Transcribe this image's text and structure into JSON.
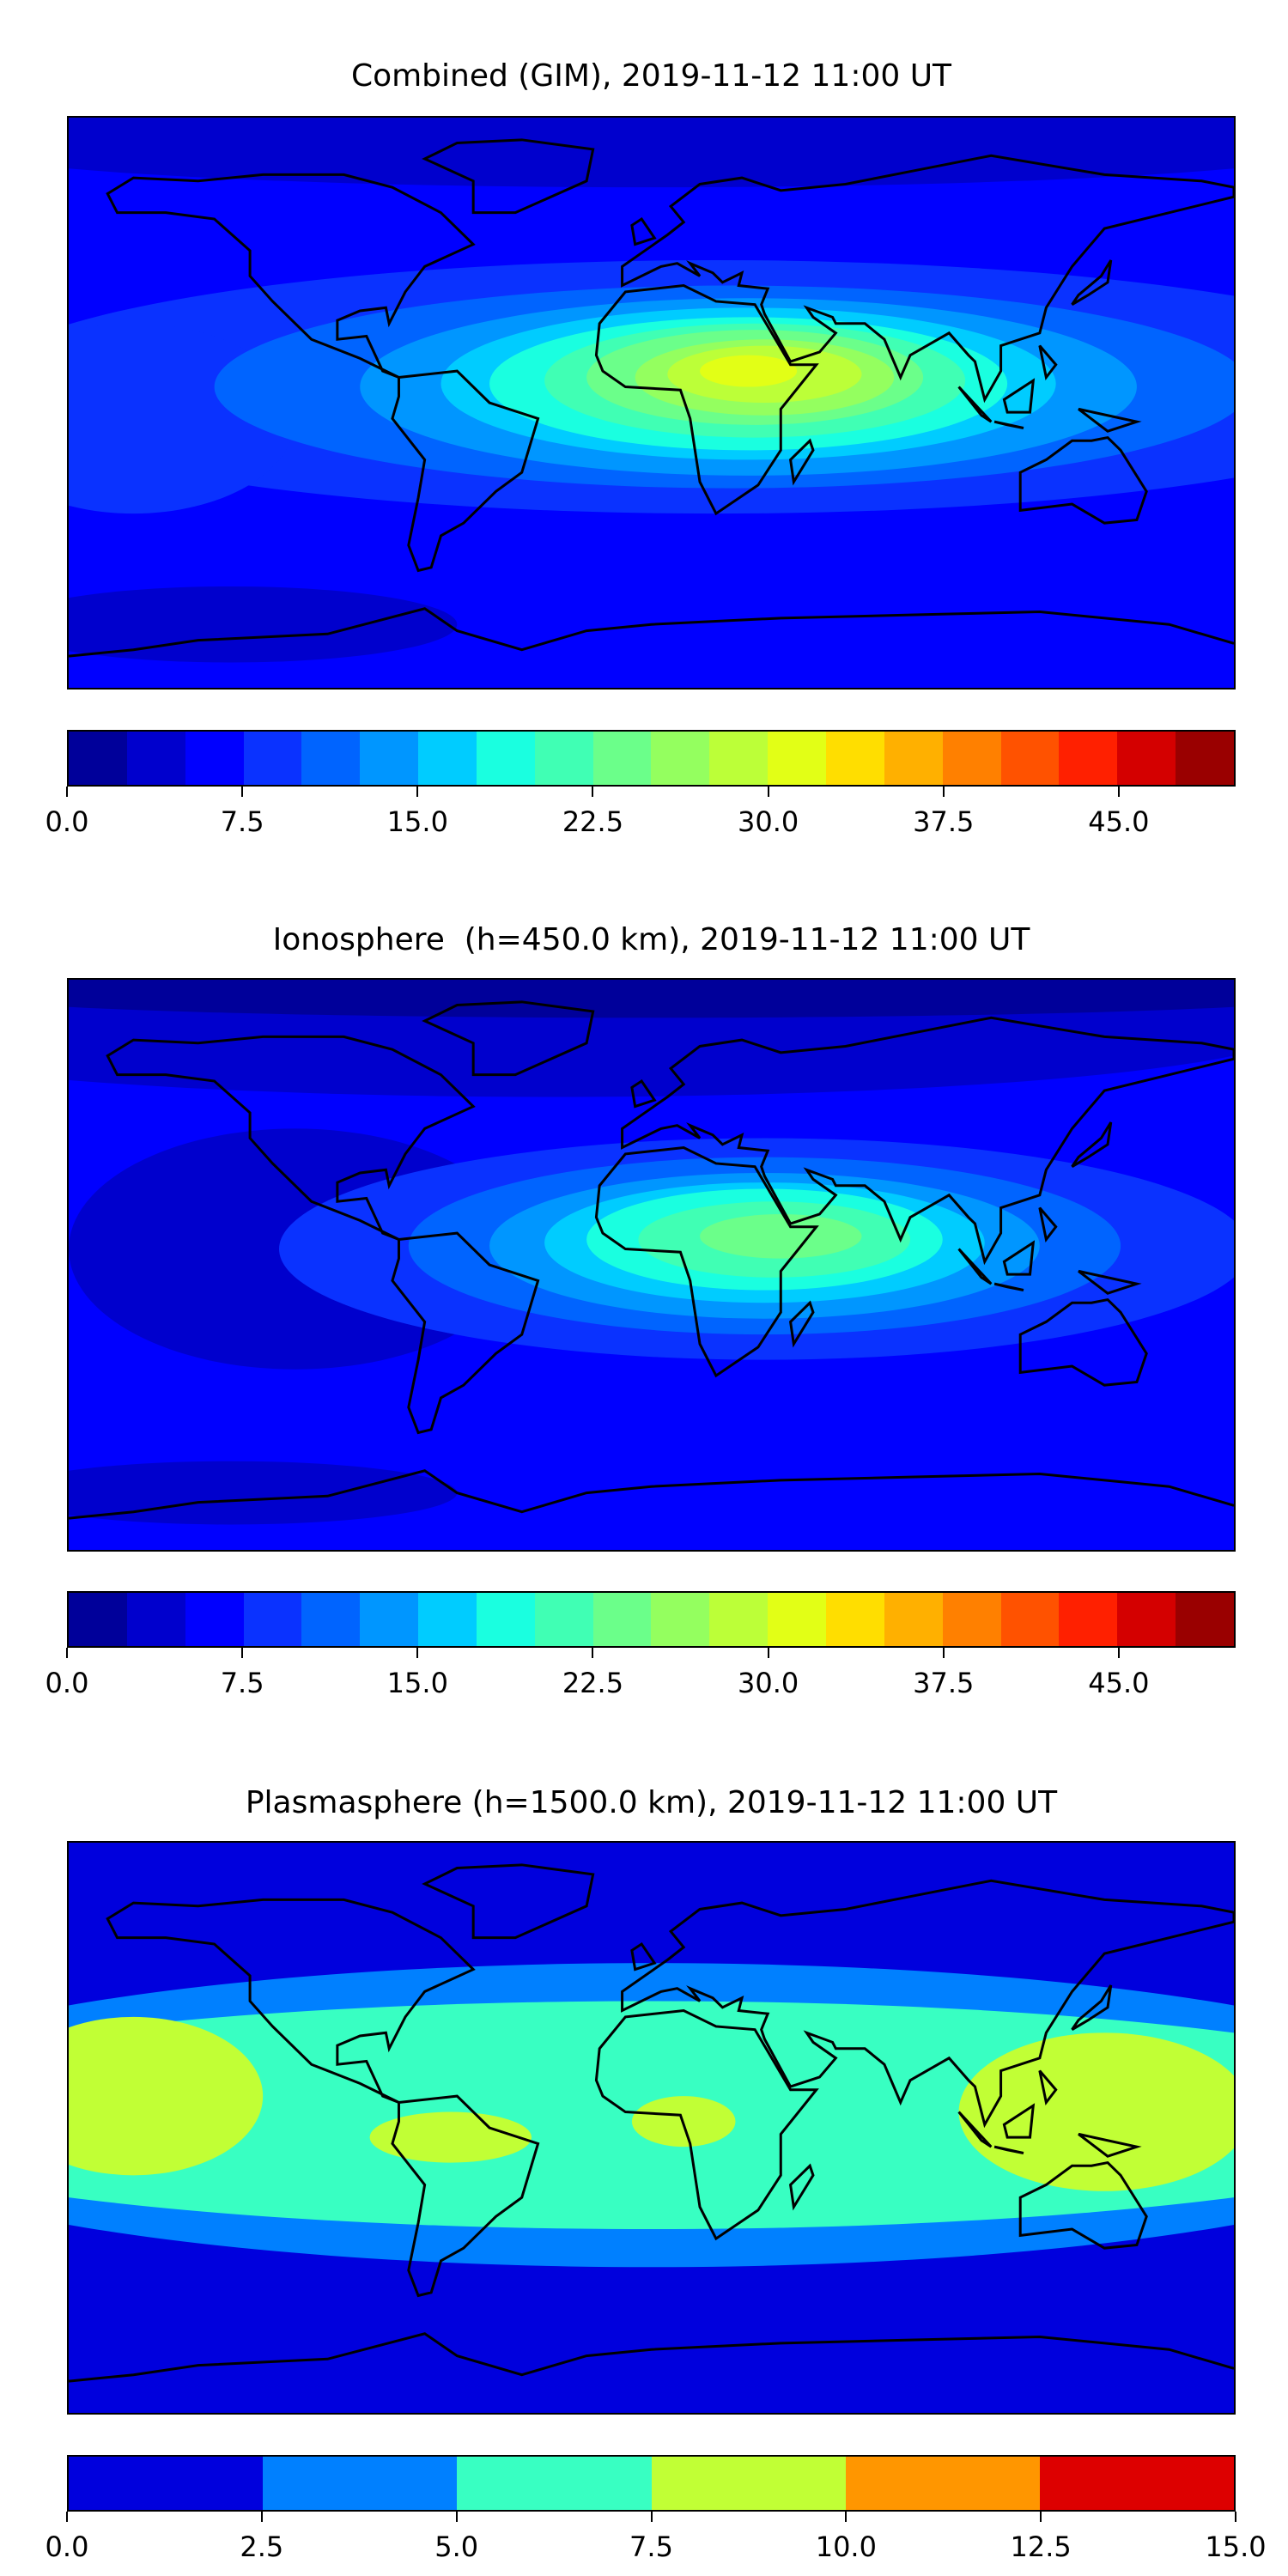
{
  "chart_data": [
    {
      "type": "contourf",
      "title": "Combined (GIM), 2019-11-12 11:00 UT",
      "projection": "equirectangular",
      "xlim": [
        -180,
        180
      ],
      "ylim": [
        -90,
        90
      ],
      "levels": [
        0,
        2.5,
        5,
        7.5,
        10,
        12.5,
        15,
        17.5,
        20,
        22.5,
        25,
        27.5,
        30,
        32.5,
        35,
        37.5,
        40,
        42.5,
        45,
        47.5,
        50
      ],
      "colors": [
        "#00009a",
        "#0000cd",
        "#0000ff",
        "#0a32ff",
        "#0064ff",
        "#0096ff",
        "#00ccff",
        "#1affe0",
        "#40ffb4",
        "#6bff8a",
        "#94ff5f",
        "#bcff38",
        "#e2ff16",
        "#ffde00",
        "#ffb000",
        "#ff8000",
        "#ff5200",
        "#ff2000",
        "#d40000",
        "#9a0000"
      ],
      "colorbar_ticks": [
        "0.0",
        "7.5",
        "15.0",
        "22.5",
        "30.0",
        "37.5",
        "45.0"
      ],
      "colorbar_tick_values": [
        0,
        7.5,
        15,
        22.5,
        30,
        37.5,
        45
      ],
      "peak": {
        "lon": 30,
        "lat": 8,
        "value_range": [
          30,
          32.5
        ]
      }
    },
    {
      "type": "contourf",
      "title": "Ionosphere  (h=450.0 km), 2019-11-12 11:00 UT",
      "projection": "equirectangular",
      "xlim": [
        -180,
        180
      ],
      "ylim": [
        -90,
        90
      ],
      "levels": [
        0,
        2.5,
        5,
        7.5,
        10,
        12.5,
        15,
        17.5,
        20,
        22.5,
        25,
        27.5,
        30,
        32.5,
        35,
        37.5,
        40,
        42.5,
        45,
        47.5,
        50
      ],
      "colors": [
        "#00009a",
        "#0000cd",
        "#0000ff",
        "#0a32ff",
        "#0064ff",
        "#0096ff",
        "#00ccff",
        "#1affe0",
        "#40ffb4",
        "#6bff8a",
        "#94ff5f",
        "#bcff38",
        "#e2ff16",
        "#ffde00",
        "#ffb000",
        "#ff8000",
        "#ff5200",
        "#ff2000",
        "#d40000",
        "#9a0000"
      ],
      "colorbar_ticks": [
        "0.0",
        "7.5",
        "15.0",
        "22.5",
        "30.0",
        "37.5",
        "45.0"
      ],
      "colorbar_tick_values": [
        0,
        7.5,
        15,
        22.5,
        30,
        37.5,
        45
      ],
      "peak": {
        "lon": 35,
        "lat": 8,
        "value_range": [
          22.5,
          25
        ]
      }
    },
    {
      "type": "contourf",
      "title": "Plasmasphere (h=1500.0 km), 2019-11-12 11:00 UT",
      "projection": "equirectangular",
      "xlim": [
        -180,
        180
      ],
      "ylim": [
        -90,
        90
      ],
      "levels": [
        0,
        2.5,
        5,
        7.5,
        10,
        12.5,
        15
      ],
      "colors": [
        "#0000dd",
        "#0080ff",
        "#38ffc2",
        "#c1ff35",
        "#ff9600",
        "#dd0000"
      ],
      "colorbar_ticks": [
        "0.0",
        "2.5",
        "5.0",
        "7.5",
        "10.0",
        "12.5",
        "15.0"
      ],
      "colorbar_tick_values": [
        0,
        2.5,
        5,
        7.5,
        10,
        12.5,
        15
      ],
      "peak": {
        "lon": 140,
        "lat": 5,
        "value_range": [
          7.5,
          10
        ]
      }
    }
  ]
}
